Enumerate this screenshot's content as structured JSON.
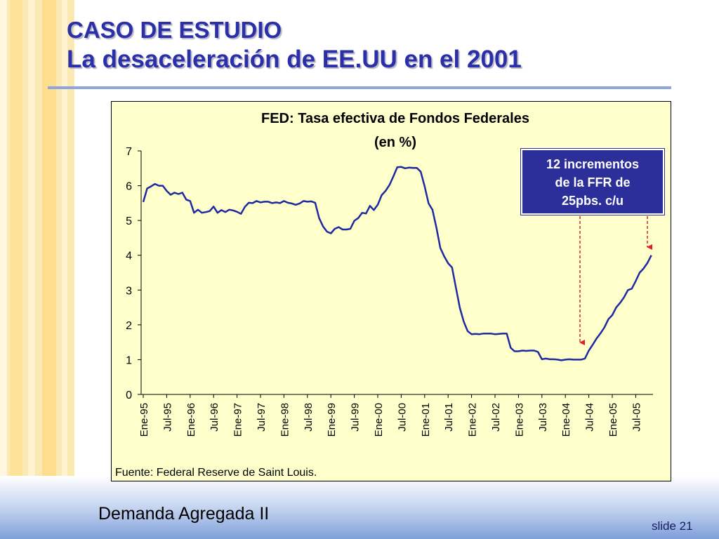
{
  "slide": {
    "title_line1": "CASO DE ESTUDIO",
    "title_line2": "La desaceleración de EE.UU en el 2001",
    "footer_text": "Demanda Agregada II",
    "slide_number": "slide 21"
  },
  "annotation": {
    "line1": "12 incrementos",
    "line2": "de la FFR de",
    "line3": "25pbs. c/u"
  },
  "colors": {
    "title": "#2B2FA8",
    "line": "#1F2AA0",
    "plot_bg": "#FFFFCC",
    "annotation_bg": "#2C2F9A",
    "arrow": "#E02020"
  },
  "chart_data": {
    "type": "line",
    "title": "FED: Tasa efectiva de Fondos Federales",
    "subtitle": "(en %)",
    "source": "Fuente: Federal Reserve de Saint Louis.",
    "ylim": [
      0,
      7
    ],
    "yticks": [
      0,
      1,
      2,
      3,
      4,
      5,
      6,
      7
    ],
    "x_tick_labels": [
      "Ene-95",
      "Jul-95",
      "Ene-96",
      "Jul-96",
      "Ene-97",
      "Jul-97",
      "Ene-98",
      "Jul-98",
      "Ene-99",
      "Jul-99",
      "Ene-00",
      "Jul-00",
      "Ene-01",
      "Jul-01",
      "Ene-02",
      "Jul-02",
      "Ene-03",
      "Jul-03",
      "Ene-04",
      "Jul-04",
      "Ene-05",
      "Jul-05"
    ],
    "grid": false,
    "series": [
      {
        "name": "",
        "start": "1995-01",
        "frequency": "monthly",
        "values": [
          5.53,
          5.92,
          5.98,
          6.05,
          6.0,
          6.0,
          5.85,
          5.74,
          5.8,
          5.76,
          5.8,
          5.6,
          5.56,
          5.22,
          5.31,
          5.22,
          5.24,
          5.27,
          5.4,
          5.22,
          5.3,
          5.24,
          5.31,
          5.29,
          5.25,
          5.19,
          5.39,
          5.51,
          5.5,
          5.56,
          5.52,
          5.54,
          5.54,
          5.5,
          5.52,
          5.5,
          5.56,
          5.51,
          5.49,
          5.45,
          5.49,
          5.56,
          5.54,
          5.55,
          5.51,
          5.07,
          4.83,
          4.68,
          4.63,
          4.76,
          4.81,
          4.74,
          4.74,
          4.76,
          4.99,
          5.07,
          5.22,
          5.2,
          5.42,
          5.3,
          5.45,
          5.73,
          5.85,
          6.02,
          6.27,
          6.53,
          6.54,
          6.5,
          6.52,
          6.51,
          6.51,
          6.4,
          5.98,
          5.49,
          5.31,
          4.8,
          4.21,
          3.97,
          3.77,
          3.65,
          3.07,
          2.49,
          2.09,
          1.82,
          1.73,
          1.74,
          1.73,
          1.75,
          1.75,
          1.75,
          1.73,
          1.74,
          1.75,
          1.75,
          1.34,
          1.24,
          1.24,
          1.26,
          1.25,
          1.26,
          1.26,
          1.22,
          1.01,
          1.03,
          1.01,
          1.01,
          1.0,
          0.98,
          1.0,
          1.01,
          1.0,
          1.0,
          1.0,
          1.03,
          1.26,
          1.43,
          1.61,
          1.76,
          1.93,
          2.16,
          2.28,
          2.5,
          2.63,
          2.79,
          3.0,
          3.04,
          3.26,
          3.5,
          3.62,
          3.78,
          4.0
        ]
      }
    ]
  }
}
